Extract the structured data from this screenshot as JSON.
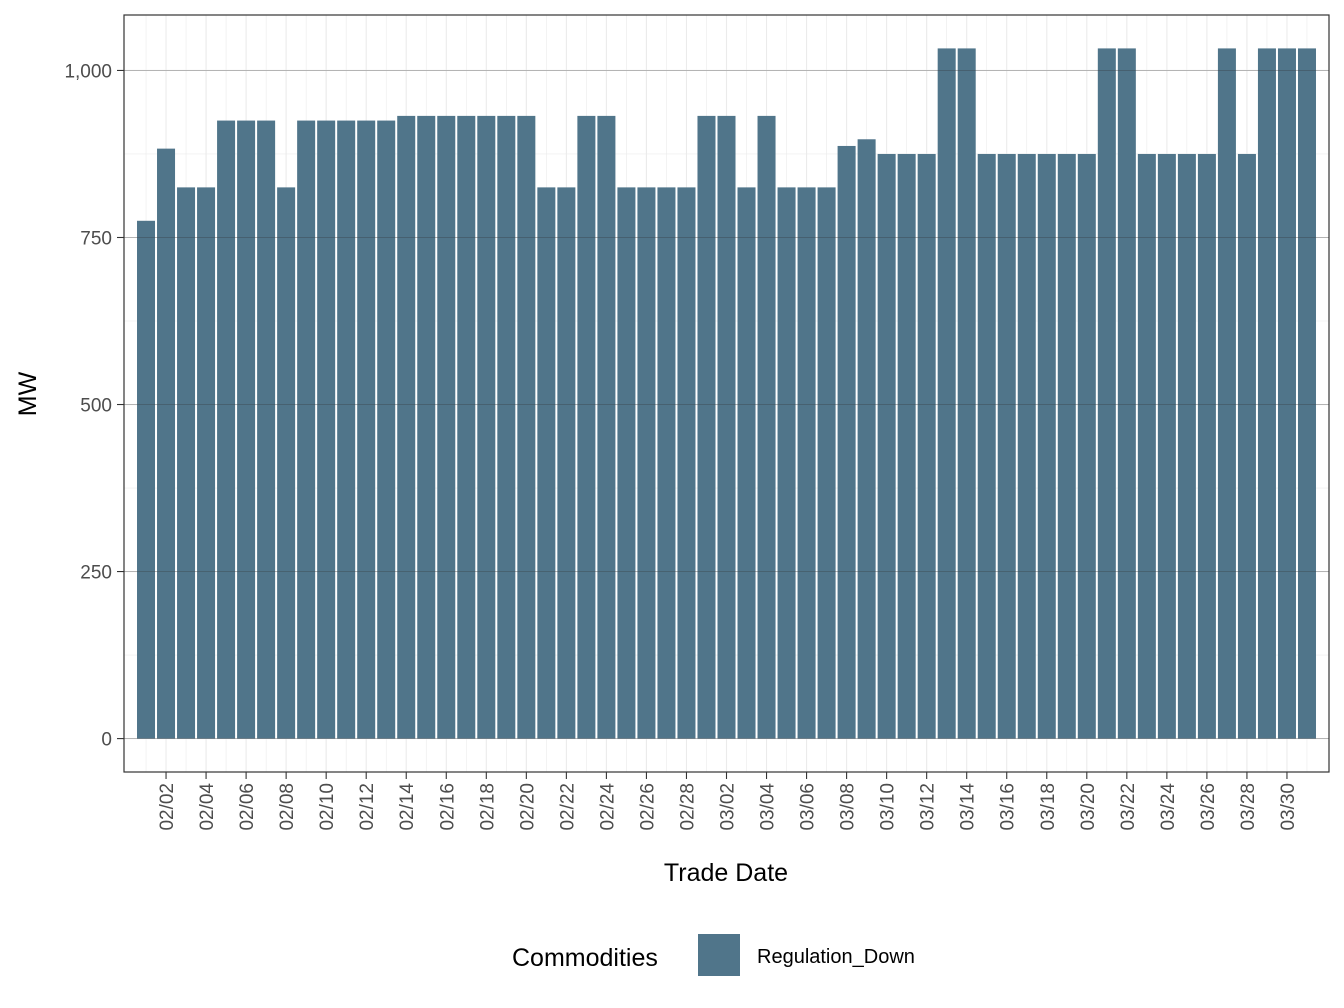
{
  "chart_data": {
    "type": "bar",
    "title": "",
    "xlabel": "Trade Date",
    "ylabel": "MW",
    "ylim": [
      -50,
      1083
    ],
    "yticks": [
      0,
      250,
      500,
      750,
      1000
    ],
    "ytick_labels": [
      "0",
      "250",
      "500",
      "750",
      "1,000"
    ],
    "x_tick_labels": [
      "02/02",
      "02/04",
      "02/06",
      "02/08",
      "02/10",
      "02/12",
      "02/14",
      "02/16",
      "02/18",
      "02/20",
      "02/22",
      "02/24",
      "02/26",
      "02/28",
      "03/02",
      "03/04",
      "03/06",
      "03/08",
      "03/10",
      "03/12",
      "03/14",
      "03/16",
      "03/18",
      "03/20",
      "03/22",
      "03/24",
      "03/26",
      "03/28",
      "03/30"
    ],
    "categories": [
      "02/01",
      "02/02",
      "02/03",
      "02/04",
      "02/05",
      "02/06",
      "02/07",
      "02/08",
      "02/09",
      "02/10",
      "02/11",
      "02/12",
      "02/13",
      "02/14",
      "02/15",
      "02/16",
      "02/17",
      "02/18",
      "02/19",
      "02/20",
      "02/21",
      "02/22",
      "02/23",
      "02/24",
      "02/25",
      "02/26",
      "02/27",
      "02/28",
      "03/01",
      "03/02",
      "03/03",
      "03/04",
      "03/05",
      "03/06",
      "03/07",
      "03/08",
      "03/09",
      "03/10",
      "03/11",
      "03/12",
      "03/13",
      "03/14",
      "03/15",
      "03/16",
      "03/17",
      "03/18",
      "03/19",
      "03/20",
      "03/21",
      "03/22",
      "03/23",
      "03/24",
      "03/25",
      "03/26",
      "03/27",
      "03/28",
      "03/29",
      "03/30",
      "03/31"
    ],
    "values": [
      775,
      883,
      825,
      825,
      925,
      925,
      925,
      825,
      925,
      925,
      925,
      925,
      925,
      932,
      932,
      932,
      932,
      932,
      932,
      932,
      825,
      825,
      932,
      932,
      825,
      825,
      825,
      825,
      932,
      932,
      825,
      932,
      825,
      825,
      825,
      887,
      897,
      875,
      875,
      875,
      1033,
      1033,
      875,
      875,
      875,
      875,
      875,
      875,
      1033,
      1033,
      875,
      875,
      875,
      875,
      1033,
      875,
      1033,
      1033,
      1033
    ],
    "grid": true,
    "legend_position": "bottom",
    "legend_title": "Commodities",
    "series": [
      {
        "name": "Regulation_Down",
        "color": "#50758a"
      }
    ]
  }
}
